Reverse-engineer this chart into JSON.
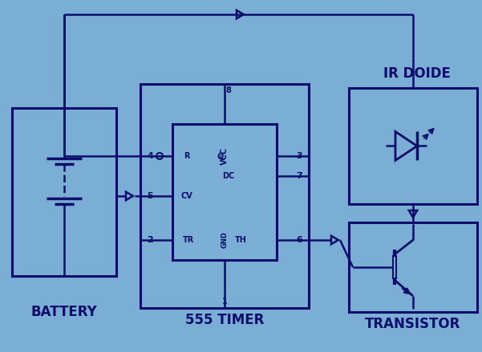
{
  "bg_color": "#7aaed4",
  "line_color": "#0d0d6b",
  "ic_fill": "#7aaed4",
  "figsize": [
    6.01,
    4.4
  ],
  "dpi": 100,
  "battery_label": "BATTERY",
  "timer_label": "555 TIMER",
  "transistor_label": "TRANSISTOR",
  "ir_label": "IR DOIDE"
}
